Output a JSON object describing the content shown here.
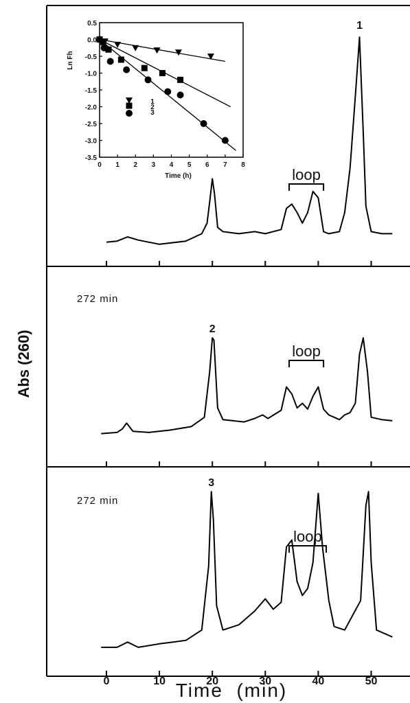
{
  "chart_data": [
    {
      "type": "line",
      "panel": "top",
      "peak_label": "1",
      "region_label": "loop",
      "time_label": "",
      "x": [
        0,
        2,
        4,
        6,
        10,
        15,
        18,
        19,
        19.5,
        20,
        20.4,
        21,
        22,
        25,
        28,
        30,
        33,
        34,
        35,
        36,
        37,
        38,
        39,
        40,
        41,
        42,
        44,
        45,
        46,
        47,
        47.8,
        48.5,
        49,
        50,
        52,
        54
      ],
      "y": [
        0.03,
        0.035,
        0.055,
        0.04,
        0.02,
        0.035,
        0.07,
        0.12,
        0.22,
        0.33,
        0.26,
        0.1,
        0.08,
        0.07,
        0.08,
        0.07,
        0.09,
        0.19,
        0.21,
        0.17,
        0.12,
        0.17,
        0.27,
        0.24,
        0.08,
        0.07,
        0.08,
        0.17,
        0.38,
        0.72,
        1.0,
        0.55,
        0.2,
        0.08,
        0.07,
        0.07
      ]
    },
    {
      "type": "line",
      "panel": "middle",
      "peak_label": "2",
      "region_label": "loop",
      "time_label": "272 min",
      "x": [
        -1,
        2,
        3,
        3.8,
        5,
        8,
        12,
        16,
        18.5,
        19.5,
        20,
        20.3,
        21,
        22,
        26,
        28,
        29.5,
        30.5,
        33,
        34,
        35,
        36,
        37,
        38,
        39,
        40,
        41,
        42,
        43,
        44,
        45,
        46,
        47,
        47.8,
        48.5,
        49.3,
        50,
        52,
        54
      ],
      "y": [
        0.02,
        0.03,
        0.06,
        0.11,
        0.04,
        0.03,
        0.05,
        0.08,
        0.16,
        0.55,
        0.84,
        0.82,
        0.24,
        0.14,
        0.12,
        0.15,
        0.18,
        0.15,
        0.22,
        0.42,
        0.36,
        0.24,
        0.28,
        0.23,
        0.34,
        0.42,
        0.23,
        0.18,
        0.16,
        0.14,
        0.18,
        0.2,
        0.28,
        0.7,
        0.84,
        0.55,
        0.16,
        0.14,
        0.13
      ]
    },
    {
      "type": "line",
      "panel": "bottom",
      "peak_label": "3",
      "region_label": "loop",
      "time_label": "272 min",
      "x": [
        -1,
        2,
        4,
        6,
        10,
        15,
        18,
        19.3,
        19.8,
        20.2,
        20.8,
        22,
        25,
        28,
        30,
        31.5,
        33,
        34,
        35,
        36,
        37,
        38,
        39,
        40,
        40.8,
        42,
        43,
        45,
        48,
        49,
        49.5,
        50,
        51,
        54
      ],
      "y": [
        0.06,
        0.06,
        0.09,
        0.06,
        0.08,
        0.1,
        0.16,
        0.53,
        0.96,
        0.8,
        0.3,
        0.16,
        0.19,
        0.27,
        0.34,
        0.28,
        0.32,
        0.64,
        0.68,
        0.44,
        0.36,
        0.4,
        0.55,
        0.95,
        0.64,
        0.33,
        0.18,
        0.16,
        0.33,
        0.88,
        0.96,
        0.55,
        0.16,
        0.12
      ]
    },
    {
      "type": "scatter",
      "panel": "inset",
      "xlabel": "Time (h)",
      "ylabel": "Ln Fh",
      "xlim": [
        0,
        8
      ],
      "ylim": [
        -3.5,
        0.5
      ],
      "x_ticks": [
        "0",
        "1",
        "2",
        "3",
        "4",
        "5",
        "6",
        "7",
        "8"
      ],
      "y_ticks": [
        "0.5",
        "0.0",
        "-0.5",
        "-1.0",
        "-1.5",
        "-2.0",
        "-2.5",
        "-3.0",
        "-3.5"
      ],
      "legend": [
        "1",
        "2",
        "3"
      ],
      "series": [
        {
          "marker": "triangle",
          "x": [
            0,
            0.3,
            1.0,
            2.0,
            3.2,
            4.4,
            6.2
          ],
          "y": [
            0.0,
            -0.05,
            -0.15,
            -0.25,
            -0.32,
            -0.38,
            -0.5
          ],
          "fit": [
            [
              0,
              0.0
            ],
            [
              7.0,
              -0.65
            ]
          ]
        },
        {
          "marker": "square",
          "x": [
            0,
            0.2,
            0.5,
            1.2,
            2.5,
            3.5,
            4.5
          ],
          "y": [
            0.0,
            -0.08,
            -0.3,
            -0.6,
            -0.85,
            -1.0,
            -1.2
          ],
          "fit": [
            [
              0,
              0.0
            ],
            [
              7.3,
              -2.0
            ]
          ]
        },
        {
          "marker": "circle",
          "x": [
            0,
            0.25,
            0.6,
            1.5,
            2.7,
            3.8,
            4.5,
            5.8,
            7.0
          ],
          "y": [
            0.0,
            -0.25,
            -0.65,
            -0.9,
            -1.2,
            -1.55,
            -1.65,
            -2.5,
            -3.0
          ],
          "fit": [
            [
              0,
              0.0
            ],
            [
              7.6,
              -3.3
            ]
          ]
        }
      ]
    }
  ],
  "axes": {
    "ylabel": "Abs (260)",
    "xlabel": "Time  (min)",
    "x_ticks": [
      "0",
      "10",
      "20",
      "30",
      "40",
      "50"
    ]
  }
}
